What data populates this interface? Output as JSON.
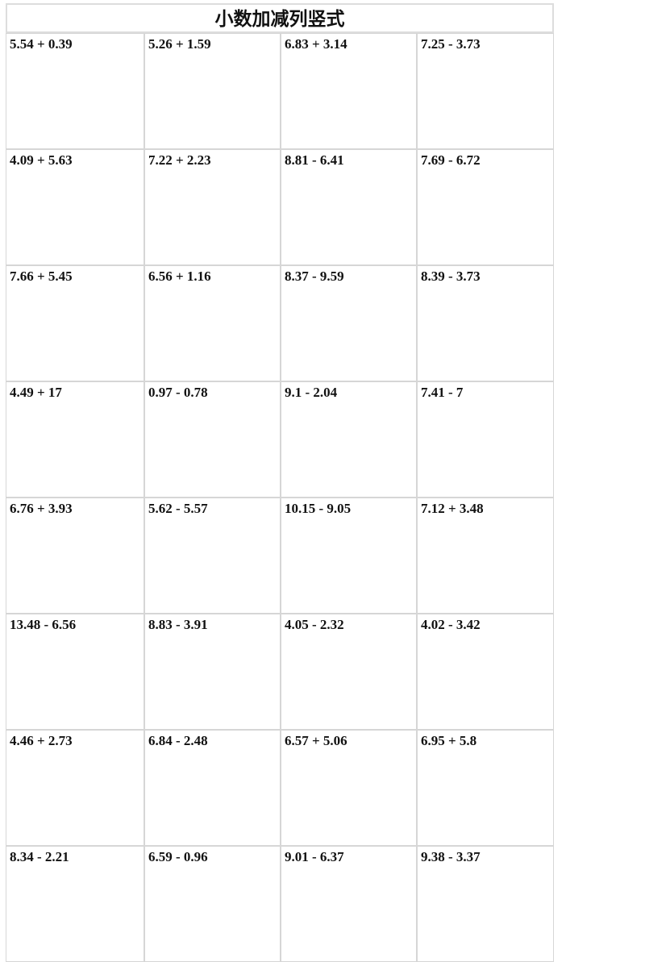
{
  "title": "小数加减列竖式",
  "problems": [
    "5.54 + 0.39",
    "5.26 + 1.59",
    "6.83 + 3.14",
    "7.25 - 3.73",
    "4.09 + 5.63",
    "7.22 + 2.23",
    "8.81 - 6.41",
    "7.69 - 6.72",
    "7.66 + 5.45",
    "6.56 + 1.16",
    "8.37 - 9.59",
    "8.39 - 3.73",
    "4.49 + 17",
    "0.97 - 0.78",
    "9.1 - 2.04",
    "7.41 - 7",
    "6.76 + 3.93",
    "5.62 - 5.57",
    "10.15 - 9.05",
    "7.12 + 3.48",
    "13.48 - 6.56",
    "8.83 - 3.91",
    "4.05 - 2.32",
    "4.02 - 3.42",
    "4.46 + 2.73",
    "6.84 - 2.48",
    "6.57 + 5.06",
    "6.95 + 5.8",
    "8.34 - 2.21",
    "6.59 - 0.96",
    "9.01 - 6.37",
    "9.38 - 3.37"
  ]
}
